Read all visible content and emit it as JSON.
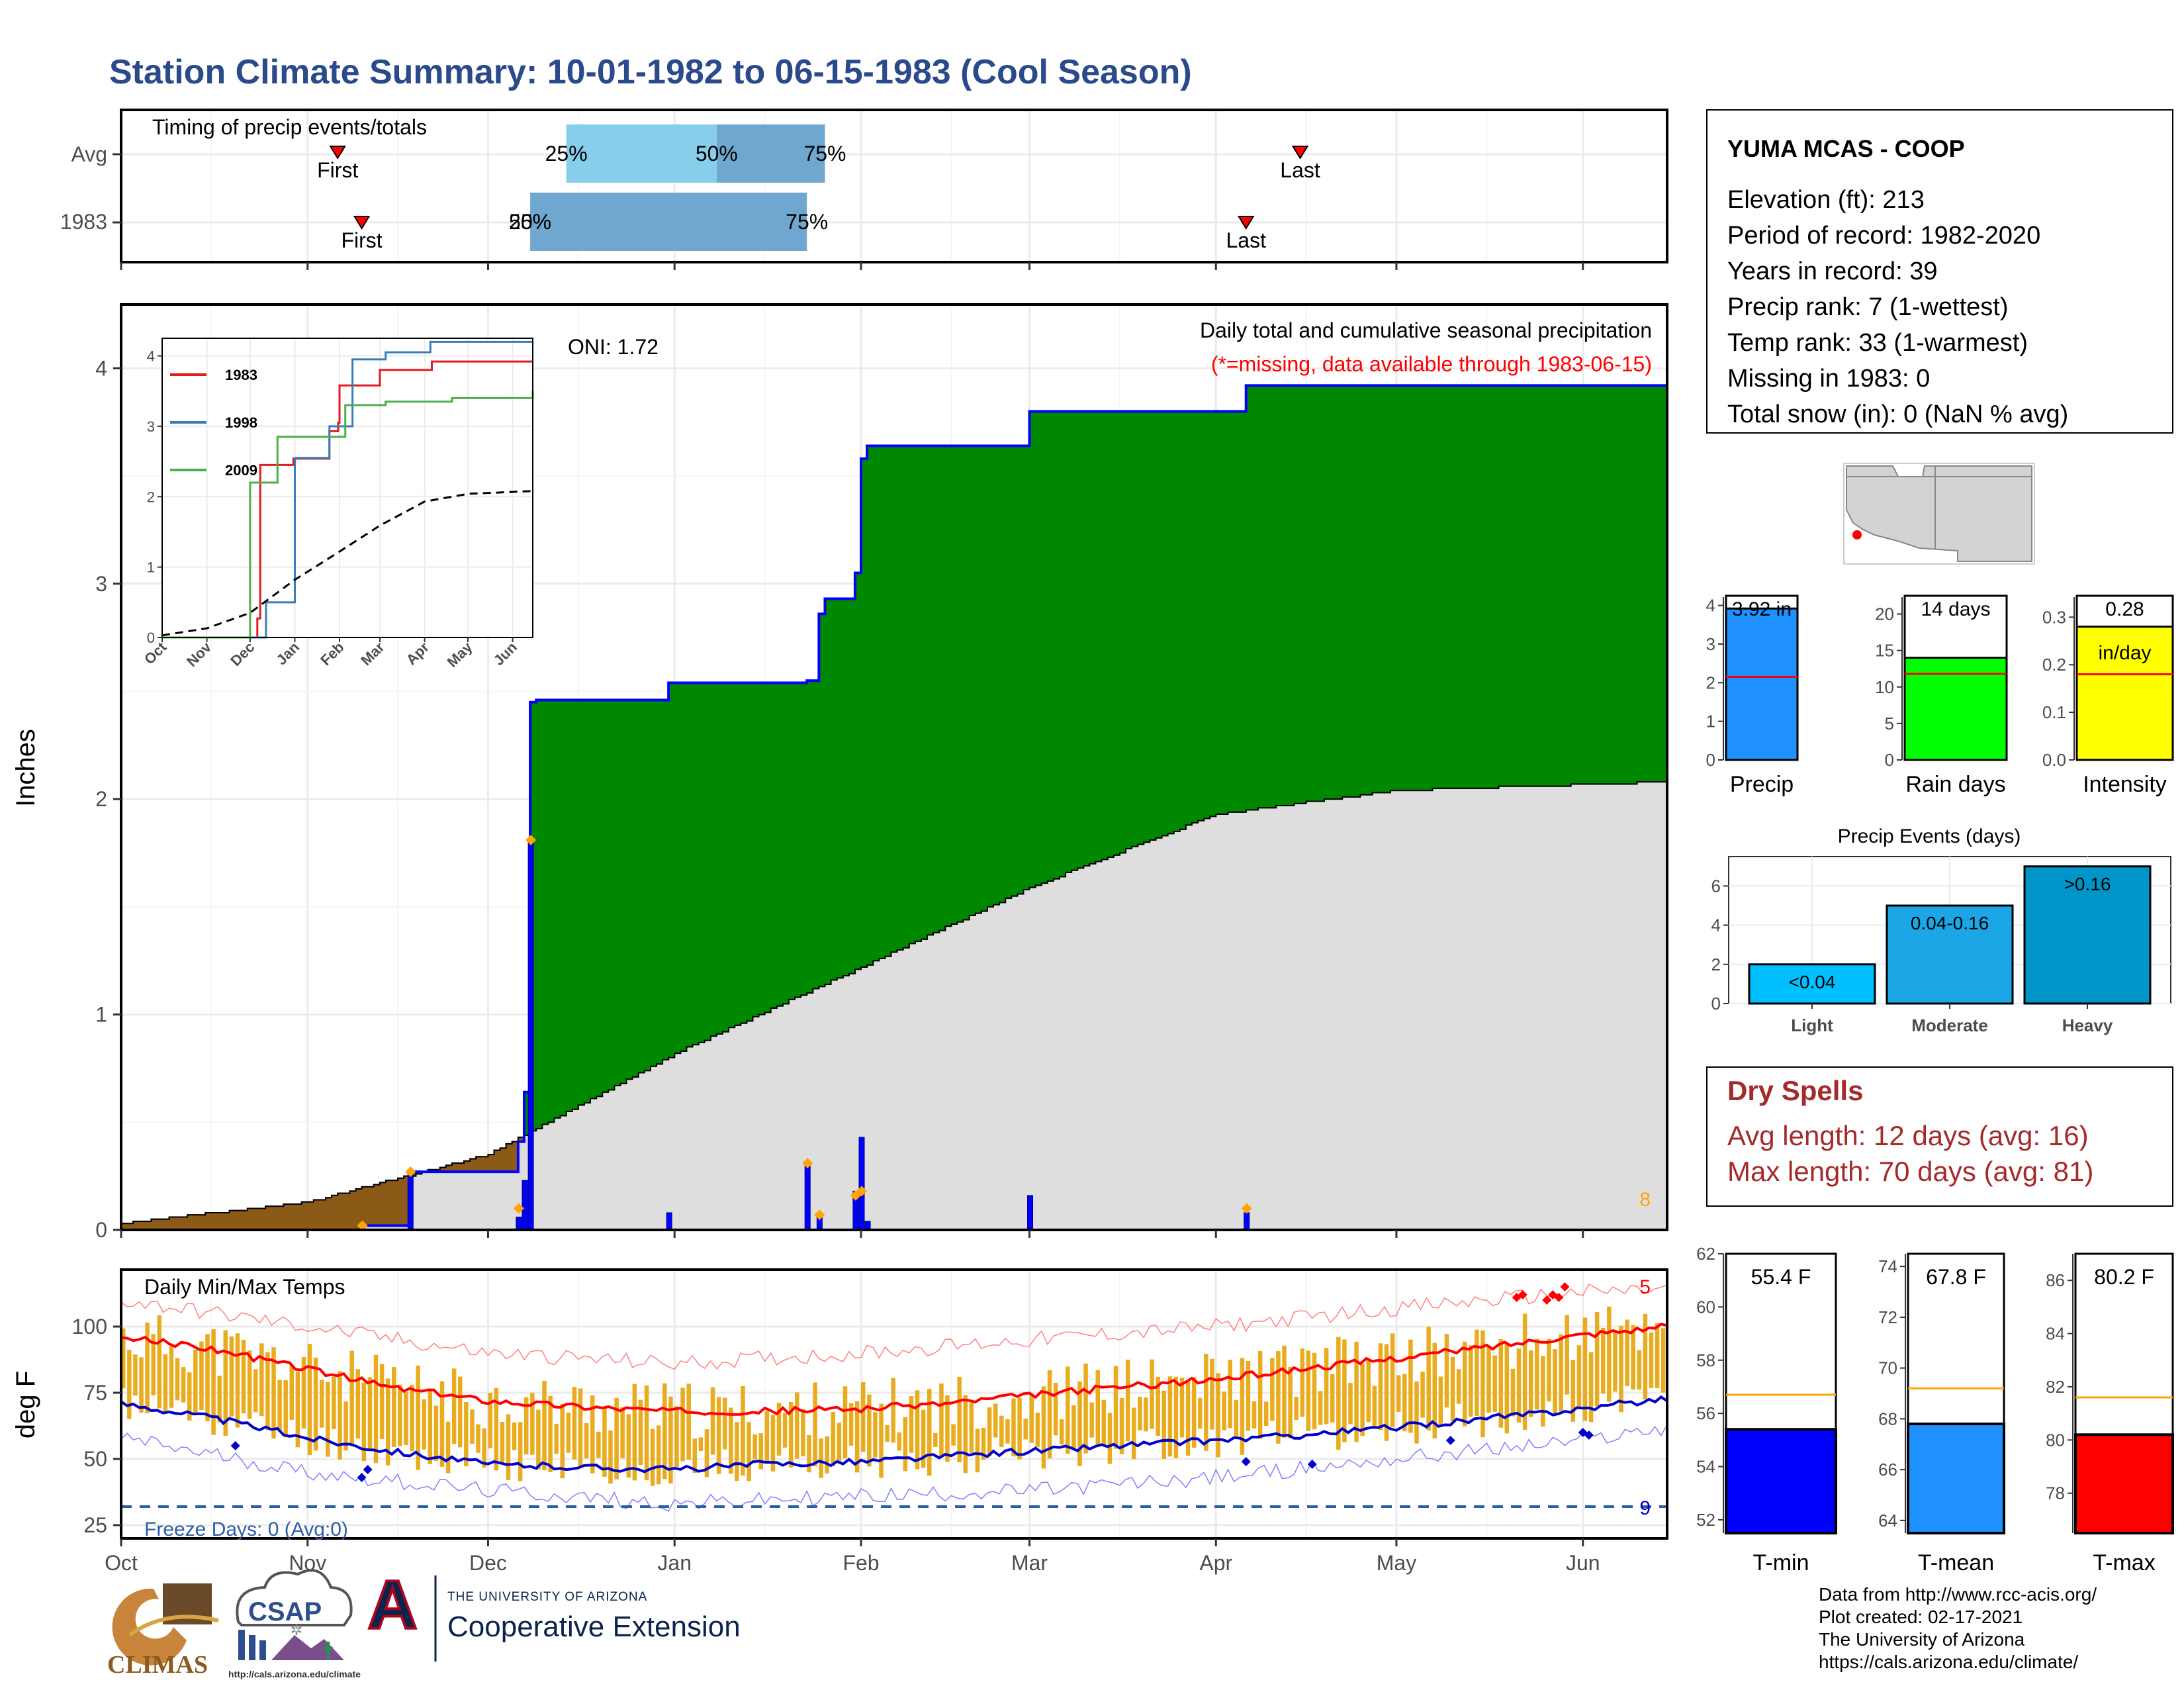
{
  "title": "Station Climate Summary: 10-01-1982 to 06-15-1983 (Cool Season)",
  "timing": {
    "panel_label": "Timing of precip events/totals",
    "rows": [
      "Avg",
      "1983"
    ],
    "first_label": "First",
    "last_label": "Last",
    "avg": {
      "first": "1982-11-06",
      "last": "1983-04-15",
      "p25": "1982-12-14",
      "p50": "1983-01-08",
      "p75": "1983-01-26"
    },
    "year": {
      "first": "1982-11-10",
      "last": "1983-04-06",
      "p25": "1982-12-08",
      "p50": "1982-12-08",
      "p75": "1983-01-23"
    },
    "p25_label": "25%",
    "p50_label": "50%",
    "p75_label": "75%",
    "colors": {
      "light_band": "#87ceeb",
      "dark_band": "#6fa7d0",
      "marker": "#ff0000"
    }
  },
  "precip_panel": {
    "caption": "Daily total and cumulative seasonal precipitation",
    "missing_note": "(*=missing, data available through 1983-06-15)",
    "oni_label": "ONI: 1.72",
    "ylabel": "Inches",
    "ytick_labels": [
      "0",
      "1",
      "2",
      "3",
      "4"
    ],
    "corner_count": "8",
    "colors": {
      "above_normal": "#008800",
      "below_normal": "#8b5a16",
      "normal": "#dedede",
      "cumulative_line": "#0000ff",
      "daily_bars": "#0000ff",
      "marker": "#ffa500"
    }
  },
  "inset": {
    "ytick_labels": [
      "0",
      "1",
      "2",
      "3",
      "4"
    ],
    "month_labels": [
      "Oct",
      "Nov",
      "Dec",
      "Jan",
      "Feb",
      "Mar",
      "Apr",
      "May",
      "Jun"
    ],
    "legend": [
      {
        "label": "1983",
        "color": "#e41a1c"
      },
      {
        "label": "1998",
        "color": "#377eb8"
      },
      {
        "label": "2009",
        "color": "#4daf4a"
      }
    ]
  },
  "temp_panel": {
    "label": "Daily Min/Max Temps",
    "ylabel": "deg F",
    "ytick_labels": [
      "25",
      "50",
      "75",
      "100"
    ],
    "freeze_label": "Freeze Days: 0 (Avg:0)",
    "top_count": "5",
    "bottom_count": "9",
    "colors": {
      "bars": "#e8ac1e",
      "max_avg": "#ff0000",
      "min_avg": "#0000cc",
      "freeze": "#2c5ea8"
    }
  },
  "x_axis_months": [
    "Oct",
    "Nov",
    "Dec",
    "Jan",
    "Feb",
    "Mar",
    "Apr",
    "May",
    "Jun"
  ],
  "station": {
    "name": "YUMA MCAS - COOP",
    "lines": [
      "Elevation (ft): 213",
      "Period of record: 1982-2020",
      "Years in record: 39",
      "Precip rank: 7 (1-wettest)",
      "Temp rank: 33 (1-warmest)",
      "Missing in 1983: 0",
      "Total snow (in): 0 (NaN % avg)"
    ]
  },
  "summary_bars": [
    {
      "label": "Precip",
      "value_label": "3.92 in",
      "ticks": [
        "0",
        "1",
        "2",
        "3",
        "4"
      ],
      "color": "#1e90ff"
    },
    {
      "label": "Rain days",
      "value_label": "14 days",
      "ticks": [
        "0",
        "5",
        "10",
        "15",
        "20"
      ],
      "color": "#00ff00"
    },
    {
      "label": "Intensity",
      "value_label": "0.28",
      "unit_label": "in/day",
      "ticks": [
        "0.0",
        "0.1",
        "0.2",
        "0.3"
      ],
      "color": "#ffff00"
    }
  ],
  "events": {
    "title": "Precip Events (days)",
    "ticks": [
      "0",
      "2",
      "4",
      "6"
    ],
    "bars": [
      {
        "label": "Light",
        "range_label": "<0.04",
        "value": 2,
        "color": "#00bfff"
      },
      {
        "label": "Moderate",
        "range_label": "0.04-0.16",
        "value": 5,
        "color": "#1ca6e6"
      },
      {
        "label": "Heavy",
        "range_label": ">0.16",
        "value": 7,
        "color": "#0095c8"
      }
    ]
  },
  "dry_spells": {
    "title": "Dry Spells",
    "avg_line": "Avg length: 12 days (avg: 16)",
    "max_line": "Max length: 70 days (avg: 81)",
    "color": "#a52a2a"
  },
  "temp_bars": [
    {
      "label": "T-min",
      "value_label": "55.4 F",
      "ticks": [
        "52",
        "54",
        "56",
        "58",
        "60",
        "62"
      ],
      "color": "#0000ff"
    },
    {
      "label": "T-mean",
      "value_label": "67.8 F",
      "ticks": [
        "64",
        "66",
        "68",
        "70",
        "72",
        "74"
      ],
      "color": "#1e90ff"
    },
    {
      "label": "T-max",
      "value_label": "80.2 F",
      "ticks": [
        "78",
        "80",
        "82",
        "84",
        "86"
      ],
      "color": "#ff0000"
    }
  ],
  "credits": [
    "Data from http://www.rcc-acis.org/",
    "Plot created: 02-17-2021",
    "The University of Arizona",
    "https://cals.arizona.edu/climate/"
  ],
  "logos": {
    "climas": "CLIMAS",
    "csap": "CSAP",
    "csap_url": "http://cals.arizona.edu/climate",
    "ua_small": "THE UNIVERSITY OF ARIZONA",
    "ua_big": "Cooperative Extension",
    "ua_mark": "A"
  },
  "chart_data": [
    {
      "type": "area",
      "name": "cumulative seasonal precipitation",
      "x_unit": "date",
      "y_unit": "inches",
      "ylim": [
        0,
        4.2
      ],
      "cumulative_observed": {
        "x": [
          "1982-10-01",
          "1982-11-10",
          "1982-11-18",
          "1982-12-06",
          "1982-12-06",
          "1982-12-07",
          "1982-12-08",
          "1982-12-08",
          "1982-12-09",
          "1982-12-31",
          "1982-12-31",
          "1983-01-23",
          "1983-01-25",
          "1983-01-26",
          "1983-01-31",
          "1983-02-01",
          "1983-02-01",
          "1983-02-02",
          "1983-02-02",
          "1983-02-28",
          "1983-03-01",
          "1983-04-05",
          "1983-04-06",
          "1983-06-15"
        ],
        "y": [
          0.0,
          0.02,
          0.27,
          0.27,
          0.41,
          0.64,
          0.64,
          2.45,
          2.46,
          2.46,
          2.54,
          2.55,
          2.86,
          2.93,
          3.05,
          3.52,
          3.58,
          3.58,
          3.64,
          3.64,
          3.8,
          3.8,
          3.92,
          3.92
        ]
      },
      "cumulative_normal": {
        "x": [
          "1982-10-01",
          "1982-11-01",
          "1982-12-01",
          "1983-01-01",
          "1983-02-01",
          "1983-03-01",
          "1983-04-01",
          "1983-05-01",
          "1983-06-15"
        ],
        "y": [
          0.03,
          0.13,
          0.35,
          0.82,
          1.22,
          1.59,
          1.93,
          2.04,
          2.08
        ]
      },
      "daily_precip": {
        "x": [
          "1982-11-10",
          "1982-11-18",
          "1982-12-06",
          "1982-12-07",
          "1982-12-08",
          "1982-12-31",
          "1983-01-23",
          "1983-01-25",
          "1983-01-31",
          "1983-02-01",
          "1983-02-02",
          "1983-03-01",
          "1983-04-06"
        ],
        "y": [
          0.02,
          0.27,
          0.06,
          0.23,
          1.81,
          0.08,
          0.31,
          0.07,
          0.18,
          0.43,
          0.04,
          0.16,
          0.08
        ]
      },
      "flagged_markers": {
        "x": [
          "1982-11-10",
          "1982-11-18",
          "1982-12-06",
          "1982-12-08",
          "1983-01-23",
          "1983-01-25",
          "1983-01-31",
          "1983-02-01",
          "1983-04-06"
        ],
        "y": [
          0.02,
          0.27,
          0.1,
          1.81,
          0.31,
          0.07,
          0.16,
          0.18,
          0.1
        ]
      }
    },
    {
      "type": "line",
      "name": "inset cumulative precipitation by year",
      "ylim": [
        0,
        4.2
      ],
      "series": [
        {
          "name": "1983",
          "x": [
            "1982-10-01",
            "1982-12-06",
            "1982-12-08",
            "1982-12-31",
            "1983-01-25",
            "1983-01-31",
            "1983-02-01",
            "1983-03-01",
            "1983-04-06",
            "1983-06-15"
          ],
          "y": [
            0,
            0.27,
            2.45,
            2.54,
            2.93,
            3.05,
            3.58,
            3.8,
            3.92,
            3.92
          ]
        },
        {
          "name": "1998",
          "x": [
            "1982-10-01",
            "1982-12-10",
            "1982-12-12",
            "1983-01-01",
            "1983-01-25",
            "1983-02-10",
            "1983-03-05",
            "1983-04-05",
            "1983-06-15"
          ],
          "y": [
            0,
            0,
            0.5,
            2.55,
            3.0,
            3.95,
            4.05,
            4.2,
            4.2
          ]
        },
        {
          "name": "2009",
          "x": [
            "1982-10-01",
            "1982-11-28",
            "1982-12-01",
            "1982-12-20",
            "1983-01-25",
            "1983-02-05",
            "1983-03-05",
            "1983-04-20",
            "1983-06-15"
          ],
          "y": [
            0,
            0,
            2.2,
            2.85,
            2.85,
            3.3,
            3.35,
            3.4,
            3.5
          ]
        },
        {
          "name": "normal",
          "x": [
            "1982-10-01",
            "1982-11-01",
            "1982-12-01",
            "1983-01-01",
            "1983-02-01",
            "1983-03-01",
            "1983-04-01",
            "1983-05-01",
            "1983-06-15"
          ],
          "y": [
            0.03,
            0.13,
            0.35,
            0.82,
            1.22,
            1.59,
            1.93,
            2.04,
            2.08
          ]
        }
      ]
    },
    {
      "type": "line",
      "name": "daily min/max temps",
      "y_unit": "deg F",
      "ylim": [
        20,
        121
      ],
      "series": [
        {
          "name": "avg max",
          "x": [
            "1982-10-01",
            "1982-10-15",
            "1982-11-01",
            "1982-11-15",
            "1982-12-01",
            "1982-12-15",
            "1983-01-01",
            "1983-01-15",
            "1983-02-01",
            "1983-02-15",
            "1983-03-01",
            "1983-03-15",
            "1983-04-01",
            "1983-04-15",
            "1983-05-01",
            "1983-05-15",
            "1983-06-01",
            "1983-06-15"
          ],
          "y": [
            96,
            92,
            84,
            77,
            72,
            70,
            68,
            68,
            69,
            71,
            74,
            77,
            80,
            84,
            88,
            92,
            97,
            100
          ]
        },
        {
          "name": "avg min",
          "x": [
            "1982-10-01",
            "1982-10-15",
            "1982-11-01",
            "1982-11-15",
            "1982-12-01",
            "1982-12-15",
            "1983-01-01",
            "1983-01-15",
            "1983-02-01",
            "1983-02-15",
            "1983-03-01",
            "1983-03-15",
            "1983-04-01",
            "1983-04-15",
            "1983-05-01",
            "1983-05-15",
            "1983-06-01",
            "1983-06-15"
          ],
          "y": [
            71,
            66,
            58,
            53,
            48,
            47,
            46,
            48,
            49,
            51,
            53,
            55,
            57,
            59,
            62,
            65,
            69,
            73
          ]
        },
        {
          "name": "record high",
          "x": [
            "1982-10-01",
            "1982-11-01",
            "1982-12-01",
            "1983-01-01",
            "1983-02-01",
            "1983-03-01",
            "1983-04-01",
            "1983-05-01",
            "1983-06-01",
            "1983-06-15"
          ],
          "y": [
            110,
            100,
            90,
            86,
            90,
            95,
            100,
            107,
            113,
            114
          ]
        },
        {
          "name": "record low",
          "x": [
            "1982-10-01",
            "1982-11-01",
            "1982-12-01",
            "1983-01-01",
            "1983-02-01",
            "1983-03-01",
            "1983-04-01",
            "1983-05-01",
            "1983-06-01",
            "1983-06-15"
          ],
          "y": [
            58,
            45,
            38,
            33,
            36,
            38,
            43,
            50,
            57,
            62
          ]
        }
      ],
      "freeze_line": 32,
      "daily_range": {
        "x_start": "1982-10-01",
        "x_end": "1983-06-15",
        "max": [
          95,
          80,
          73,
          70,
          68,
          72,
          78,
          85,
          93,
          102
        ],
        "min": [
          70,
          56,
          50,
          47,
          47,
          50,
          55,
          59,
          65,
          72
        ]
      }
    },
    {
      "type": "bar",
      "name": "season summary",
      "categories": [
        "Precip",
        "Rain days",
        "Intensity"
      ],
      "values": [
        3.92,
        14,
        0.28
      ],
      "averages": [
        2.15,
        11.8,
        0.18
      ]
    },
    {
      "type": "bar",
      "name": "Precip Events (days)",
      "categories": [
        "Light",
        "Moderate",
        "Heavy"
      ],
      "values": [
        2,
        5,
        7
      ],
      "ylim": [
        0,
        7.5
      ]
    },
    {
      "type": "bar",
      "name": "temperature summary",
      "categories": [
        "T-min",
        "T-mean",
        "T-max"
      ],
      "values": [
        55.4,
        67.8,
        80.2
      ],
      "averages": [
        56.7,
        69.2,
        81.6
      ],
      "ylims": [
        [
          51.5,
          62
        ],
        [
          63.5,
          74.5
        ],
        [
          76.5,
          87
        ]
      ]
    }
  ]
}
